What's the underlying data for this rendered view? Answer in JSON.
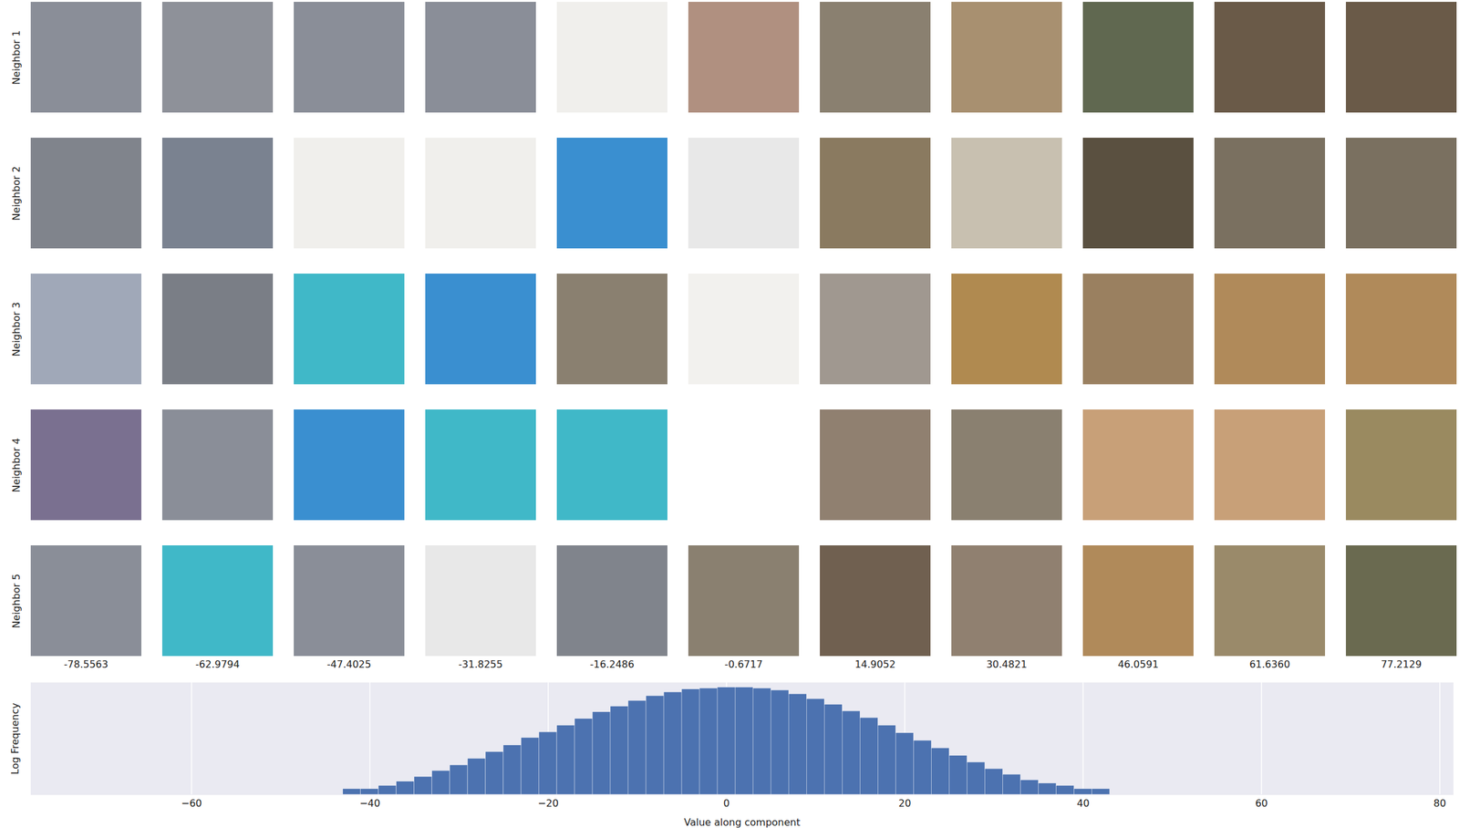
{
  "chart_data": {
    "type": "histogram",
    "x_label": "Value along component",
    "y_label": "Log Frequency",
    "bins": [
      -49,
      -47,
      -45,
      -43,
      -41,
      -39,
      -37,
      -35,
      -33,
      -31,
      -29,
      -27,
      -25,
      -23,
      -21,
      -19,
      -17,
      -15,
      -13,
      -11,
      -9,
      -7,
      -5,
      -3,
      -1,
      1,
      3,
      5,
      7,
      9,
      11,
      13,
      15,
      17,
      19,
      21,
      23,
      25,
      27,
      29,
      31,
      33,
      35,
      37,
      39,
      41,
      43,
      45,
      47,
      49
    ],
    "values": [
      1,
      1,
      1,
      2,
      2,
      3,
      5,
      9,
      19,
      38,
      85,
      195,
      440,
      1110,
      2250,
      5100,
      11600,
      26600,
      53500,
      108000,
      195000,
      310000,
      444000,
      500000,
      560000,
      560000,
      500000,
      395000,
      245000,
      135000,
      67000,
      30000,
      13100,
      5100,
      2000,
      790,
      310,
      122,
      54,
      24,
      12,
      6,
      4,
      3,
      2,
      2,
      1,
      1,
      1
    ],
    "color": "#4c72b0",
    "xlim": [
      -78,
      81.5
    ],
    "xticks": [
      -60,
      -40,
      -20,
      0,
      20,
      40,
      60,
      80
    ],
    "ylim": [
      1,
      1000000
    ],
    "log": "y",
    "grid": true,
    "tick_labels": "x"
  },
  "image_grid": {
    "row_labels": [
      "Neighbor 1",
      "Neighbor 2",
      "Neighbor 3",
      "Neighbor 4",
      "Neighbor 5"
    ],
    "column_labels": [
      "-78.5563",
      "-62.9794",
      "-47.4025",
      "-31.8255",
      "-16.2486",
      "-0.6717",
      "14.9052",
      "30.4821",
      "46.0591",
      "61.6360",
      "77.2129"
    ],
    "cell_colors": [
      [
        "#8a8e98",
        "#8e9199",
        "#8a8e98",
        "#8a8e98",
        "#f0efec",
        "#b09080",
        "#8a8070",
        "#a89070",
        "#606850",
        "#6a5a48",
        "#6a5a48"
      ],
      [
        "#80848c",
        "#7a8290",
        "#f0efec",
        "#f0efec",
        "#3a8fd0",
        "#e8e8e8",
        "#8a7a60",
        "#c8c0b0",
        "#5a5040",
        "#7a7060",
        "#7a7060"
      ],
      [
        "#a0a8b8",
        "#7a7e86",
        "#40b8c8",
        "#3a8fd0",
        "#8a8070",
        "#f2f1ee",
        "#a09890",
        "#b08a50",
        "#9a8060",
        "#b08a5a",
        "#b08a5a"
      ],
      [
        "#7a7090",
        "#8a8e98",
        "#3a8fd0",
        "#40b8c8",
        "#40b8c8",
        "#ffffff",
        "#908070",
        "#8a8070",
        "#c8a078",
        "#c8a078",
        "#9a8a60"
      ],
      [
        "#8a8e98",
        "#40b8c8",
        "#8a8e98",
        "#e8e8e8",
        "#80848c",
        "#8a8070",
        "#706050",
        "#908070",
        "#b08a5a",
        "#9a8a6a",
        "#6a6a50"
      ]
    ]
  }
}
